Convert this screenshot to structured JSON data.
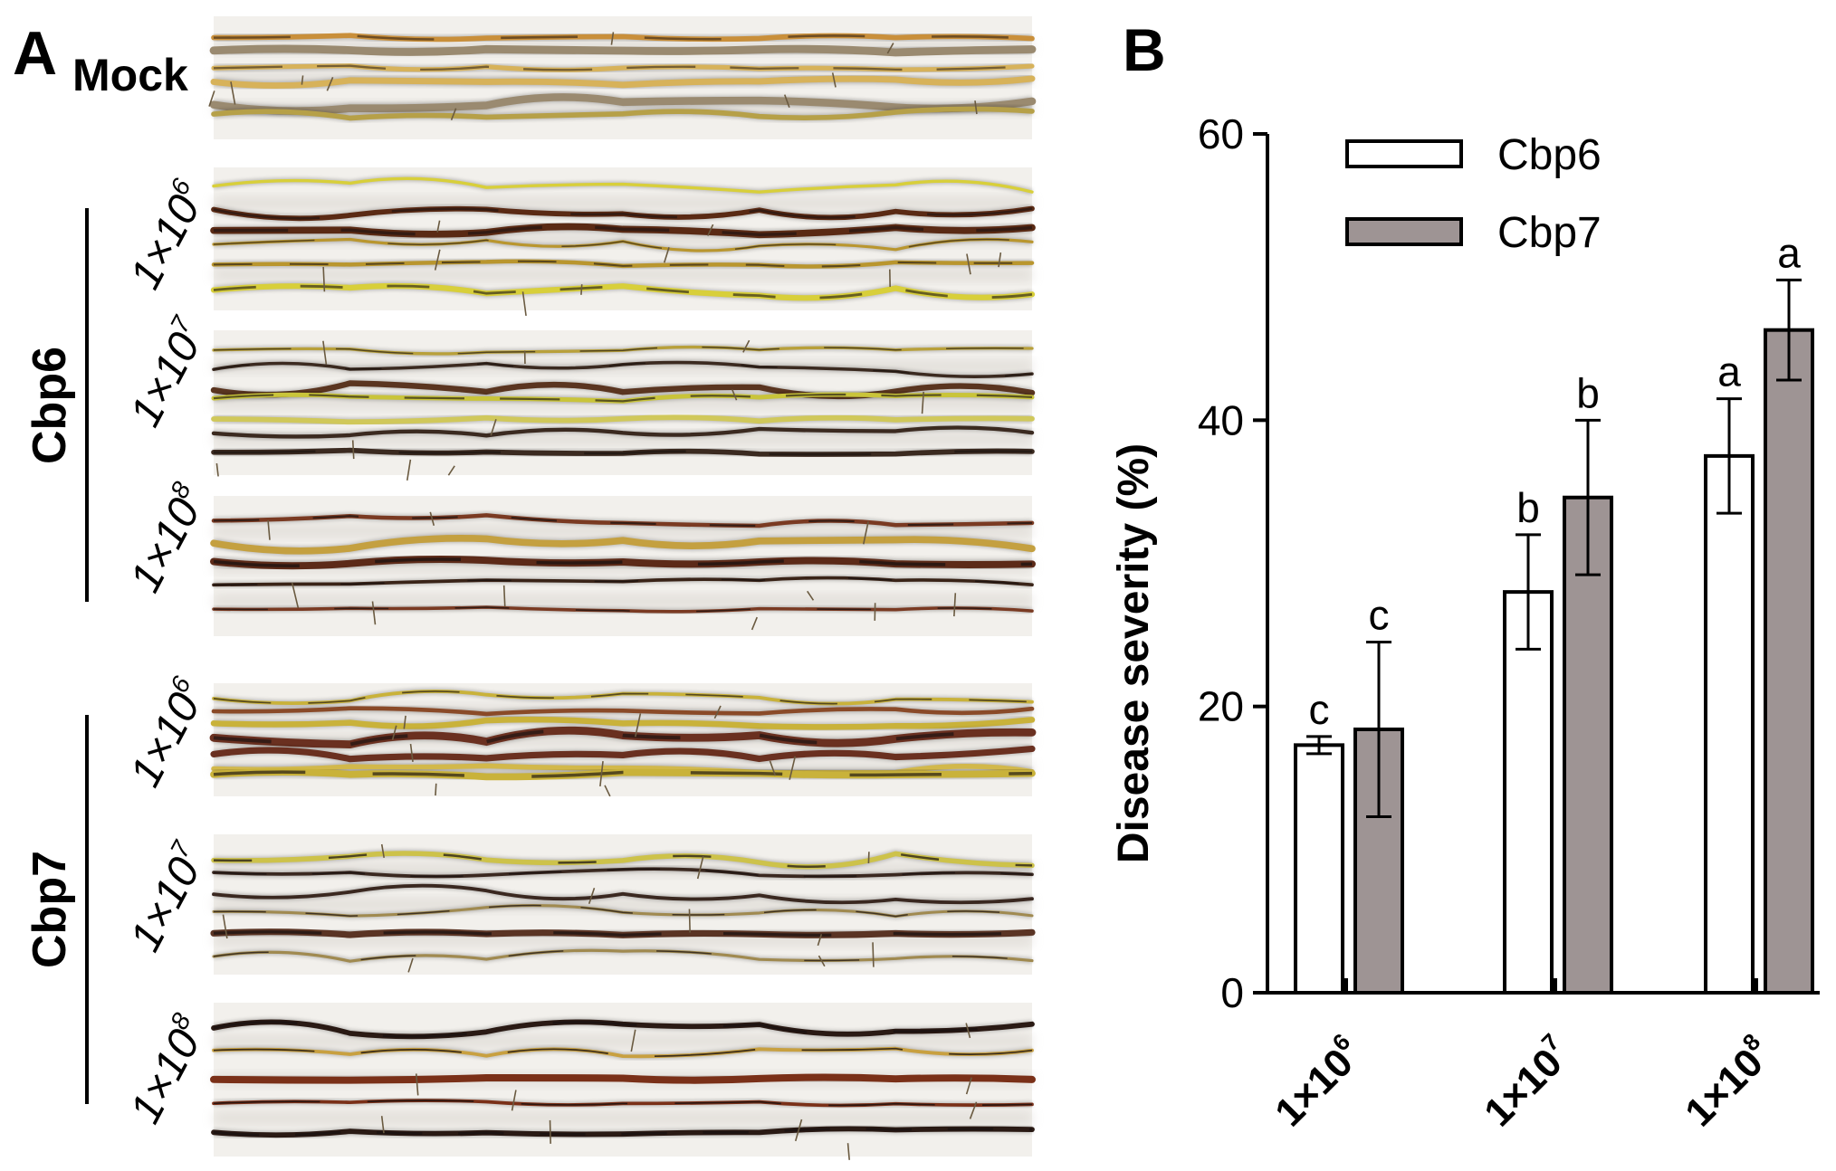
{
  "panel_a": {
    "letter": "A",
    "mock_label": "Mock",
    "groups": [
      {
        "name": "Cbp6",
        "rows": [
          {
            "base": "1×10",
            "exp": "6"
          },
          {
            "base": "1×10",
            "exp": "7"
          },
          {
            "base": "1×10",
            "exp": "8"
          }
        ]
      },
      {
        "name": "Cbp7",
        "rows": [
          {
            "base": "1×10",
            "exp": "6"
          },
          {
            "base": "1×10",
            "exp": "7"
          },
          {
            "base": "1×10",
            "exp": "8"
          }
        ]
      }
    ]
  },
  "panel_b": {
    "letter": "B"
  },
  "chart_data": {
    "type": "bar",
    "ylabel": "Disease severity (%)",
    "xlabel": "",
    "ylim": [
      0,
      60
    ],
    "yticks": [
      0,
      20,
      40,
      60
    ],
    "categories": [
      {
        "base": "1×10",
        "exp": "6"
      },
      {
        "base": "1×10",
        "exp": "7"
      },
      {
        "base": "1×10",
        "exp": "8"
      }
    ],
    "legend_position": "top-left",
    "grid": false,
    "series": [
      {
        "name": "Cbp6",
        "color": "#ffffff",
        "values": [
          17.3,
          28.0,
          37.5
        ],
        "errors": [
          0.6,
          4.0,
          4.0
        ],
        "letters": [
          "c",
          "b",
          "a"
        ]
      },
      {
        "name": "Cbp7",
        "color": "#9e9494",
        "values": [
          18.4,
          34.6,
          46.3
        ],
        "errors": [
          6.1,
          5.4,
          3.5
        ],
        "letters": [
          "c",
          "b",
          "a"
        ]
      }
    ]
  }
}
